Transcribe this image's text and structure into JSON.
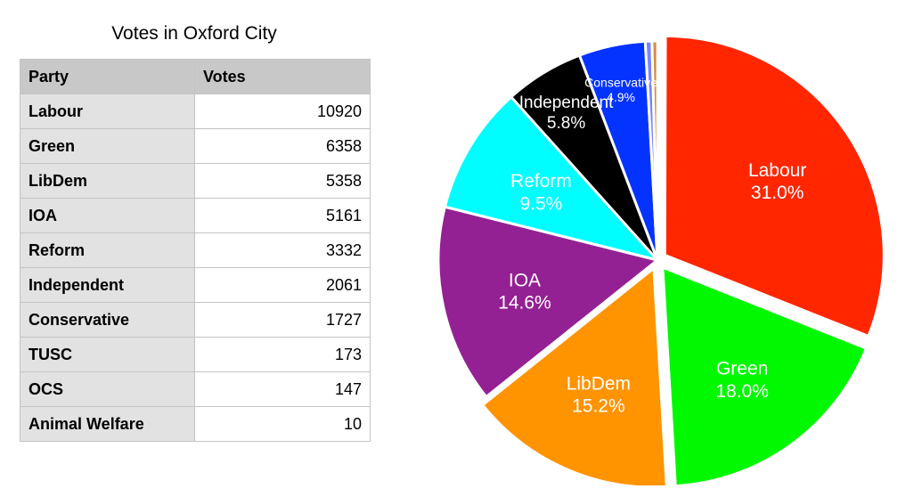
{
  "chart_data": {
    "type": "pie",
    "title": "Votes in Oxford City",
    "table": {
      "headers": [
        "Party",
        "Votes"
      ],
      "rows": [
        {
          "party": "Labour",
          "votes": 10920
        },
        {
          "party": "Green",
          "votes": 6358
        },
        {
          "party": "LibDem",
          "votes": 5358
        },
        {
          "party": "IOA",
          "votes": 5161
        },
        {
          "party": "Reform",
          "votes": 3332
        },
        {
          "party": "Independent",
          "votes": 2061
        },
        {
          "party": "Conservative",
          "votes": 1727
        },
        {
          "party": "TUSC",
          "votes": 173
        },
        {
          "party": "OCS",
          "votes": 147
        },
        {
          "party": "Animal Welfare",
          "votes": 10
        }
      ]
    },
    "slices": [
      {
        "name": "Labour",
        "value": 10920,
        "percent_label": "31.0%",
        "color": "#ff2600",
        "label_color": "#ffffff",
        "labelled": true,
        "exploded": true
      },
      {
        "name": "Green",
        "value": 6358,
        "percent_label": "18.0%",
        "color": "#00f900",
        "label_color": "#ffffff",
        "labelled": true,
        "exploded": true
      },
      {
        "name": "LibDem",
        "value": 5358,
        "percent_label": "15.2%",
        "color": "#ff9300",
        "label_color": "#ffffff",
        "labelled": true,
        "exploded": true
      },
      {
        "name": "IOA",
        "value": 5161,
        "percent_label": "14.6%",
        "color": "#942193",
        "label_color": "#ffffff",
        "labelled": true,
        "exploded": false
      },
      {
        "name": "Reform",
        "value": 3332,
        "percent_label": "9.5%",
        "color": "#00fdff",
        "label_color": "#ffffff",
        "labelled": true,
        "exploded": false
      },
      {
        "name": "Independent",
        "value": 2061,
        "percent_label": "5.8%",
        "color": "#000000",
        "label_color": "#ffffff",
        "labelled": true,
        "exploded": false
      },
      {
        "name": "Conservative",
        "value": 1727,
        "percent_label": "4.9%",
        "color": "#0433ff",
        "label_color": "#ffffff",
        "labelled": true,
        "exploded": false
      },
      {
        "name": "TUSC",
        "value": 173,
        "percent_label": "",
        "color": "#7a81ff",
        "label_color": "#ffffff",
        "labelled": false,
        "exploded": false
      },
      {
        "name": "OCS",
        "value": 147,
        "percent_label": "",
        "color": "#d08f45",
        "label_color": "#ffffff",
        "labelled": false,
        "exploded": false
      },
      {
        "name": "Animal Welfare",
        "value": 10,
        "percent_label": "",
        "color": "#ff9300",
        "label_color": "#ffffff",
        "labelled": false,
        "exploded": false
      }
    ]
  }
}
